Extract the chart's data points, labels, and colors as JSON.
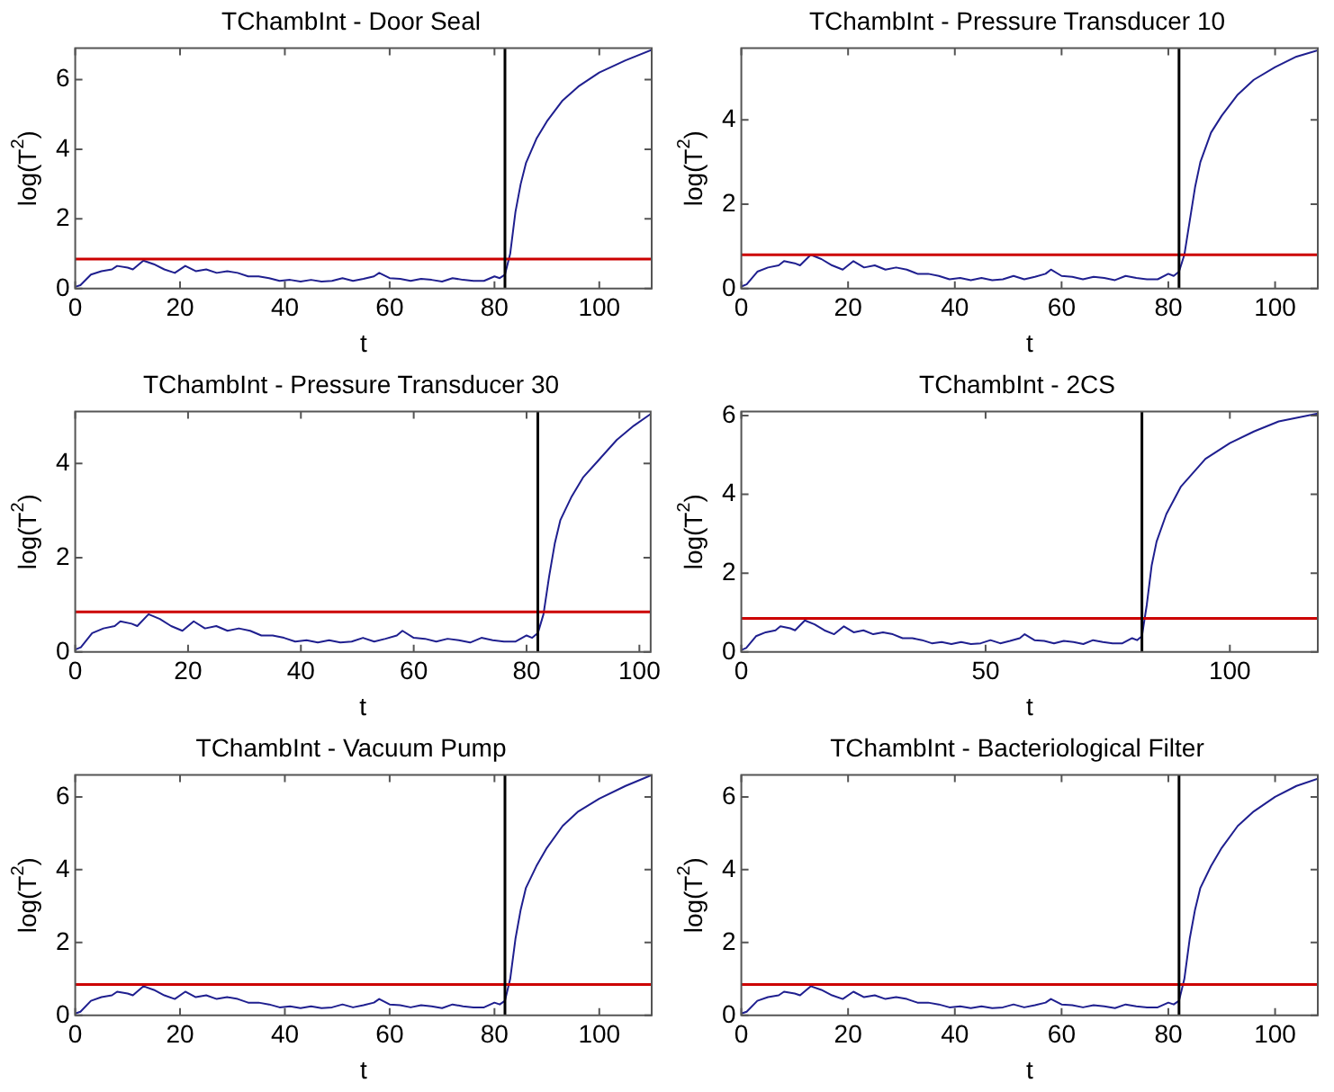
{
  "chart_data": [
    {
      "type": "line",
      "title": "TChambInt - Door Seal",
      "xlabel": "t",
      "ylabel": "log(T$^{2}$)",
      "xlim": [
        0,
        110
      ],
      "ylim": [
        0,
        6.9
      ],
      "xticks": [
        0,
        20,
        40,
        60,
        80,
        100
      ],
      "yticks": [
        0,
        2,
        4,
        6
      ],
      "series": [
        {
          "color": "#1f1f8f",
          "x": [
            0,
            1,
            3,
            5,
            7,
            8,
            10,
            11,
            13,
            15,
            17,
            19,
            21,
            23,
            25,
            27,
            29,
            31,
            33,
            35,
            37,
            39,
            41,
            43,
            45,
            47,
            49,
            51,
            53,
            55,
            57,
            58,
            60,
            62,
            64,
            66,
            68,
            70,
            72,
            74,
            76,
            78,
            80,
            81,
            82,
            83,
            84,
            85,
            86,
            88,
            90,
            93,
            96,
            100,
            105,
            110
          ],
          "values": [
            0.05,
            0.1,
            0.4,
            0.5,
            0.55,
            0.65,
            0.6,
            0.55,
            0.8,
            0.7,
            0.55,
            0.45,
            0.65,
            0.5,
            0.55,
            0.45,
            0.5,
            0.45,
            0.35,
            0.35,
            0.3,
            0.22,
            0.25,
            0.2,
            0.25,
            0.2,
            0.22,
            0.3,
            0.22,
            0.28,
            0.35,
            0.45,
            0.3,
            0.28,
            0.22,
            0.28,
            0.25,
            0.2,
            0.3,
            0.25,
            0.22,
            0.22,
            0.35,
            0.3,
            0.4,
            1.0,
            2.2,
            3.0,
            3.6,
            4.3,
            4.8,
            5.4,
            5.8,
            6.2,
            6.55,
            6.85
          ]
        }
      ],
      "ref_lines": [
        {
          "axis": "y",
          "value": 0.85,
          "color": "#cc0000"
        },
        {
          "axis": "x",
          "value": 82,
          "color": "#000000"
        }
      ]
    },
    {
      "type": "line",
      "title": "TChambInt - Pressure Transducer 10",
      "xlabel": "t",
      "ylabel": "log(T$^{2}$)",
      "xlim": [
        0,
        108
      ],
      "ylim": [
        0,
        5.7
      ],
      "xticks": [
        0,
        20,
        40,
        60,
        80,
        100
      ],
      "yticks": [
        0,
        2,
        4
      ],
      "series": [
        {
          "color": "#1f1f8f",
          "x": [
            0,
            1,
            3,
            5,
            7,
            8,
            10,
            11,
            13,
            15,
            17,
            19,
            21,
            23,
            25,
            27,
            29,
            31,
            33,
            35,
            37,
            39,
            41,
            43,
            45,
            47,
            49,
            51,
            53,
            55,
            57,
            58,
            60,
            62,
            64,
            66,
            68,
            70,
            72,
            74,
            76,
            78,
            80,
            81,
            82,
            83,
            84,
            85,
            86,
            88,
            90,
            93,
            96,
            100,
            104,
            108
          ],
          "values": [
            0.05,
            0.1,
            0.4,
            0.5,
            0.55,
            0.65,
            0.6,
            0.55,
            0.8,
            0.7,
            0.55,
            0.45,
            0.65,
            0.5,
            0.55,
            0.45,
            0.5,
            0.45,
            0.35,
            0.35,
            0.3,
            0.22,
            0.25,
            0.2,
            0.25,
            0.2,
            0.22,
            0.3,
            0.22,
            0.28,
            0.35,
            0.45,
            0.3,
            0.28,
            0.22,
            0.28,
            0.25,
            0.2,
            0.3,
            0.25,
            0.22,
            0.22,
            0.35,
            0.3,
            0.4,
            0.8,
            1.6,
            2.4,
            3.0,
            3.7,
            4.1,
            4.6,
            4.95,
            5.25,
            5.5,
            5.65
          ]
        }
      ],
      "ref_lines": [
        {
          "axis": "y",
          "value": 0.8,
          "color": "#cc0000"
        },
        {
          "axis": "x",
          "value": 82,
          "color": "#000000"
        }
      ]
    },
    {
      "type": "line",
      "title": "TChambInt - Pressure Transducer 30",
      "xlabel": "t",
      "ylabel": "log(T$^{2}$)",
      "xlim": [
        0,
        102
      ],
      "ylim": [
        0,
        5.1
      ],
      "xticks": [
        0,
        20,
        40,
        60,
        80,
        100
      ],
      "yticks": [
        0,
        2,
        4
      ],
      "series": [
        {
          "color": "#1f1f8f",
          "x": [
            0,
            1,
            3,
            5,
            7,
            8,
            10,
            11,
            13,
            15,
            17,
            19,
            21,
            23,
            25,
            27,
            29,
            31,
            33,
            35,
            37,
            39,
            41,
            43,
            45,
            47,
            49,
            51,
            53,
            55,
            57,
            58,
            60,
            62,
            64,
            66,
            68,
            70,
            72,
            74,
            76,
            78,
            80,
            81,
            82,
            83,
            84,
            85,
            86,
            88,
            90,
            93,
            96,
            99,
            102
          ],
          "values": [
            0.05,
            0.1,
            0.4,
            0.5,
            0.55,
            0.65,
            0.6,
            0.55,
            0.8,
            0.7,
            0.55,
            0.45,
            0.65,
            0.5,
            0.55,
            0.45,
            0.5,
            0.45,
            0.35,
            0.35,
            0.3,
            0.22,
            0.25,
            0.2,
            0.25,
            0.2,
            0.22,
            0.3,
            0.22,
            0.28,
            0.35,
            0.45,
            0.3,
            0.28,
            0.22,
            0.28,
            0.25,
            0.2,
            0.3,
            0.25,
            0.22,
            0.22,
            0.35,
            0.3,
            0.4,
            0.8,
            1.6,
            2.3,
            2.8,
            3.3,
            3.7,
            4.1,
            4.5,
            4.8,
            5.05
          ]
        }
      ],
      "ref_lines": [
        {
          "axis": "y",
          "value": 0.85,
          "color": "#cc0000"
        },
        {
          "axis": "x",
          "value": 82,
          "color": "#000000"
        }
      ]
    },
    {
      "type": "line",
      "title": "TChambInt - 2CS",
      "xlabel": "t",
      "ylabel": "log(T$^{2}$)",
      "xlim": [
        0,
        118
      ],
      "ylim": [
        0,
        6.1
      ],
      "xticks": [
        0,
        50,
        100
      ],
      "yticks": [
        0,
        2,
        4,
        6
      ],
      "series": [
        {
          "color": "#1f1f8f",
          "x": [
            0,
            1,
            3,
            5,
            7,
            8,
            10,
            11,
            13,
            15,
            17,
            19,
            21,
            23,
            25,
            27,
            29,
            31,
            33,
            35,
            37,
            39,
            41,
            43,
            45,
            47,
            49,
            51,
            53,
            55,
            57,
            58,
            60,
            62,
            64,
            66,
            68,
            70,
            72,
            74,
            76,
            78,
            80,
            81,
            82,
            83,
            84,
            85,
            87,
            90,
            95,
            100,
            105,
            110,
            118
          ],
          "values": [
            0.05,
            0.1,
            0.4,
            0.5,
            0.55,
            0.65,
            0.6,
            0.55,
            0.8,
            0.7,
            0.55,
            0.45,
            0.65,
            0.5,
            0.55,
            0.45,
            0.5,
            0.45,
            0.35,
            0.35,
            0.3,
            0.22,
            0.25,
            0.2,
            0.25,
            0.2,
            0.22,
            0.3,
            0.22,
            0.28,
            0.35,
            0.45,
            0.3,
            0.28,
            0.22,
            0.28,
            0.25,
            0.2,
            0.3,
            0.25,
            0.22,
            0.22,
            0.35,
            0.3,
            0.4,
            1.2,
            2.2,
            2.8,
            3.5,
            4.2,
            4.9,
            5.3,
            5.6,
            5.85,
            6.05
          ]
        }
      ],
      "ref_lines": [
        {
          "axis": "y",
          "value": 0.85,
          "color": "#cc0000"
        },
        {
          "axis": "x",
          "value": 82,
          "color": "#000000"
        }
      ]
    },
    {
      "type": "line",
      "title": "TChambInt - Vacuum Pump",
      "xlabel": "t",
      "ylabel": "log(T$^{2}$)",
      "xlim": [
        0,
        110
      ],
      "ylim": [
        0,
        6.6
      ],
      "xticks": [
        0,
        20,
        40,
        60,
        80,
        100
      ],
      "yticks": [
        0,
        2,
        4,
        6
      ],
      "series": [
        {
          "color": "#1f1f8f",
          "x": [
            0,
            1,
            3,
            5,
            7,
            8,
            10,
            11,
            13,
            15,
            17,
            19,
            21,
            23,
            25,
            27,
            29,
            31,
            33,
            35,
            37,
            39,
            41,
            43,
            45,
            47,
            49,
            51,
            53,
            55,
            57,
            58,
            60,
            62,
            64,
            66,
            68,
            70,
            72,
            74,
            76,
            78,
            80,
            81,
            82,
            83,
            84,
            85,
            86,
            88,
            90,
            93,
            96,
            100,
            105,
            110
          ],
          "values": [
            0.05,
            0.1,
            0.4,
            0.5,
            0.55,
            0.65,
            0.6,
            0.55,
            0.8,
            0.7,
            0.55,
            0.45,
            0.65,
            0.5,
            0.55,
            0.45,
            0.5,
            0.45,
            0.35,
            0.35,
            0.3,
            0.22,
            0.25,
            0.2,
            0.25,
            0.2,
            0.22,
            0.3,
            0.22,
            0.28,
            0.35,
            0.45,
            0.3,
            0.28,
            0.22,
            0.28,
            0.25,
            0.2,
            0.3,
            0.25,
            0.22,
            0.22,
            0.35,
            0.3,
            0.4,
            1.0,
            2.1,
            2.9,
            3.5,
            4.1,
            4.6,
            5.2,
            5.6,
            5.95,
            6.3,
            6.6
          ]
        }
      ],
      "ref_lines": [
        {
          "axis": "y",
          "value": 0.85,
          "color": "#cc0000"
        },
        {
          "axis": "x",
          "value": 82,
          "color": "#000000"
        }
      ]
    },
    {
      "type": "line",
      "title": "TChambInt - Bacteriological Filter",
      "xlabel": "t",
      "ylabel": "log(T$^{2}$)",
      "xlim": [
        0,
        108
      ],
      "ylim": [
        0,
        6.6
      ],
      "xticks": [
        0,
        20,
        40,
        60,
        80,
        100
      ],
      "yticks": [
        0,
        2,
        4,
        6
      ],
      "series": [
        {
          "color": "#1f1f8f",
          "x": [
            0,
            1,
            3,
            5,
            7,
            8,
            10,
            11,
            13,
            15,
            17,
            19,
            21,
            23,
            25,
            27,
            29,
            31,
            33,
            35,
            37,
            39,
            41,
            43,
            45,
            47,
            49,
            51,
            53,
            55,
            57,
            58,
            60,
            62,
            64,
            66,
            68,
            70,
            72,
            74,
            76,
            78,
            80,
            81,
            82,
            83,
            84,
            85,
            86,
            88,
            90,
            93,
            96,
            100,
            104,
            108
          ],
          "values": [
            0.05,
            0.1,
            0.4,
            0.5,
            0.55,
            0.65,
            0.6,
            0.55,
            0.8,
            0.7,
            0.55,
            0.45,
            0.65,
            0.5,
            0.55,
            0.45,
            0.5,
            0.45,
            0.35,
            0.35,
            0.3,
            0.22,
            0.25,
            0.2,
            0.25,
            0.2,
            0.22,
            0.3,
            0.22,
            0.28,
            0.35,
            0.45,
            0.3,
            0.28,
            0.22,
            0.28,
            0.25,
            0.2,
            0.3,
            0.25,
            0.22,
            0.22,
            0.35,
            0.3,
            0.4,
            1.0,
            2.1,
            2.9,
            3.5,
            4.1,
            4.6,
            5.2,
            5.6,
            6.0,
            6.3,
            6.5
          ]
        }
      ],
      "ref_lines": [
        {
          "axis": "y",
          "value": 0.85,
          "color": "#cc0000"
        },
        {
          "axis": "x",
          "value": 82,
          "color": "#000000"
        }
      ]
    }
  ]
}
